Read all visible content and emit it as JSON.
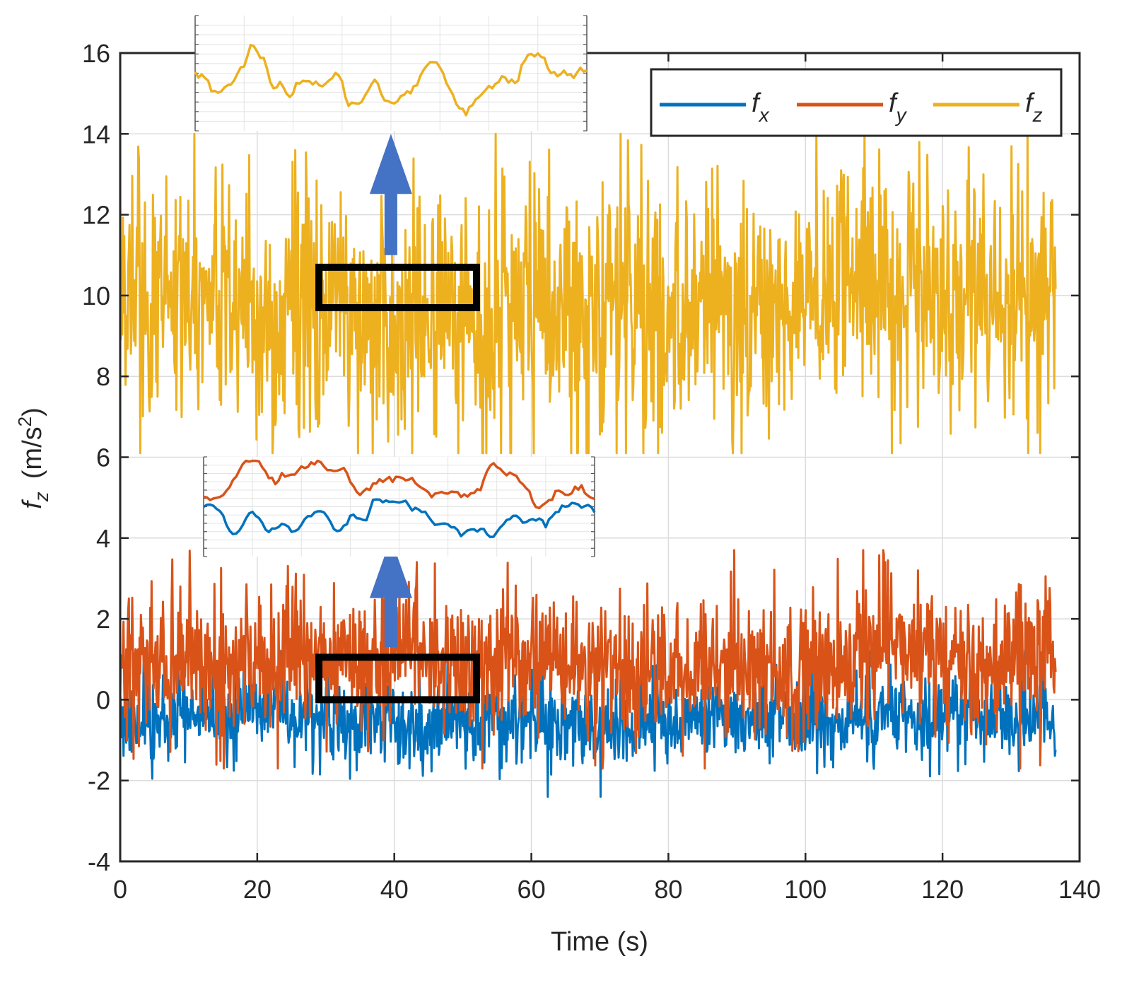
{
  "chart_data": {
    "type": "line",
    "title": "",
    "xlabel": "Time (s)",
    "ylabel": {
      "base": "f",
      "sub": "z",
      "units_prefix": "(m/s",
      "units_sup": "2",
      "units_suffix": ")"
    },
    "xlim": [
      0,
      140
    ],
    "ylim": [
      -4,
      16
    ],
    "xticks": [
      0,
      20,
      40,
      60,
      80,
      100,
      120,
      140
    ],
    "yticks": [
      -4,
      -2,
      0,
      2,
      4,
      6,
      8,
      10,
      12,
      14,
      16
    ],
    "xtick_labels": [
      "0",
      "20",
      "40",
      "60",
      "80",
      "100",
      "120",
      "140"
    ],
    "ytick_labels": [
      "-4",
      "-2",
      "0",
      "2",
      "4",
      "6",
      "8",
      "10",
      "12",
      "14",
      "16"
    ],
    "grid": true,
    "legend_position": "top-right",
    "series": [
      {
        "name": "f",
        "sub": "x",
        "color": "#0072BD",
        "mean": -0.5,
        "amplitude": 0.55,
        "min": -2.4,
        "max": 1.2,
        "t_start": 0,
        "t_end": 136.5
      },
      {
        "name": "f",
        "sub": "y",
        "color": "#D95319",
        "mean": 0.9,
        "amplitude": 0.9,
        "min": -1.7,
        "max": 3.7,
        "t_start": 0,
        "t_end": 136.5
      },
      {
        "name": "f",
        "sub": "z",
        "color": "#EDB120",
        "mean": 9.8,
        "amplitude": 1.7,
        "min": 6.1,
        "max": 14.0,
        "t_start": 0,
        "t_end": 136.5
      }
    ],
    "zoom_boxes": [
      {
        "target": "f_z",
        "x_range": [
          29,
          52
        ],
        "y_range": [
          9.7,
          10.7
        ]
      },
      {
        "target": "f_x,f_y",
        "x_range": [
          29,
          52
        ],
        "y_range": [
          0.0,
          1.05
        ]
      }
    ],
    "arrows": [
      {
        "from": [
          39.5,
          11.0
        ],
        "to": [
          39.5,
          14.0
        ]
      },
      {
        "from": [
          39.5,
          1.3
        ],
        "to": [
          39.5,
          4.0
        ]
      }
    ]
  },
  "colors": {
    "fx": "#0072BD",
    "fy": "#D95319",
    "fz": "#EDB120",
    "arrow": "#4472C4",
    "grid": "#dcdcdc",
    "axis": "#262626"
  }
}
